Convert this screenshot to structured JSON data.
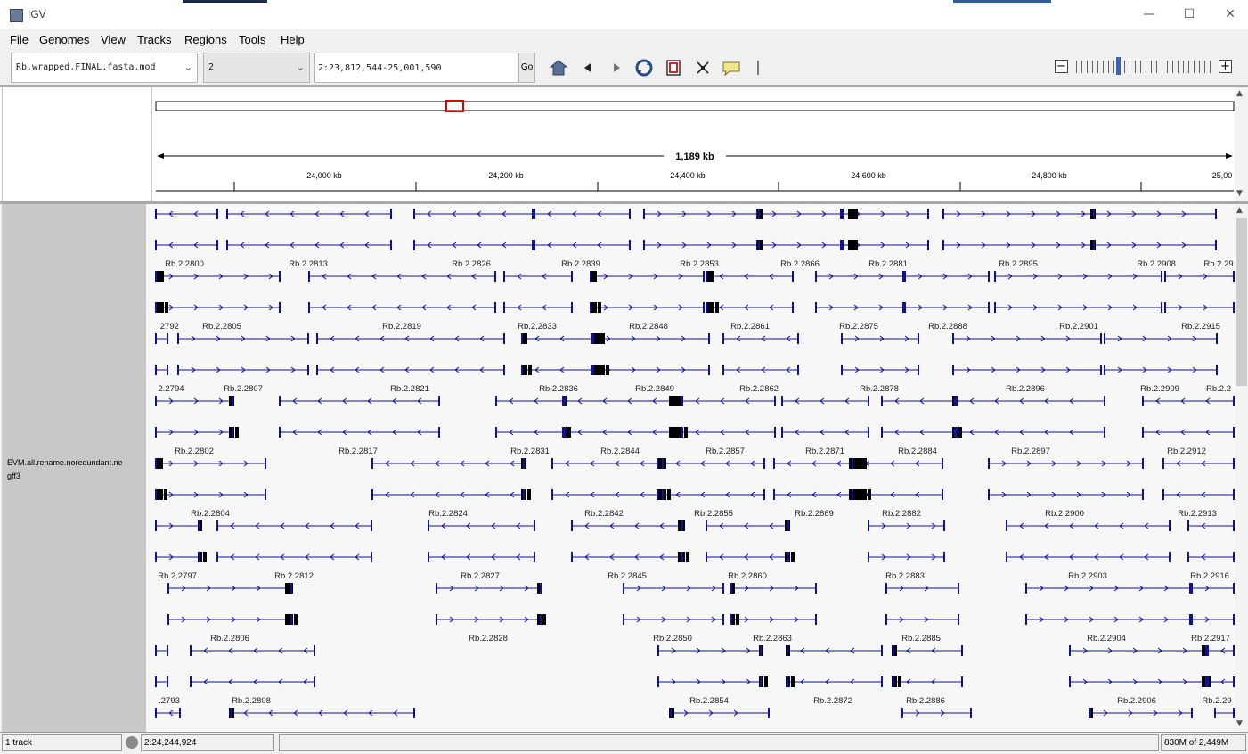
{
  "window": {
    "title": "IGV",
    "minimize": "—",
    "maximize": "☐",
    "close": "✕"
  },
  "menu": [
    "File",
    "Genomes",
    "View",
    "Tracks",
    "Regions",
    "Tools",
    "Help"
  ],
  "toolbar": {
    "genome_select": "Rb.wrapped.FINAL.fasta.mod",
    "chromosome_select": "2",
    "locus": "2:23,812,544-25,001,590",
    "go_label": "Go",
    "zoom_out": "−",
    "zoom_in": "+"
  },
  "ruler": {
    "span_label": "1,189 kb",
    "ticks": [
      {
        "label": "24,000 kb"
      },
      {
        "label": "24,200 kb"
      },
      {
        "label": "24,400 kb"
      },
      {
        "label": "24,600 kb"
      },
      {
        "label": "24,800 kb"
      },
      {
        "label": "25,00"
      }
    ]
  },
  "track": {
    "name": "EVM.all.rename.noredundant.ne gff3",
    "name_line1": "EVM.all.rename.noredundant.ne",
    "name_line2": "gff3"
  },
  "feature_color": "#10109a",
  "gene_labels": [
    [
      "Rb.2.2800",
      "Rb.2.2813",
      "Rb.2.2826",
      "Rb.2.2839",
      "Rb.2.2853",
      "Rb.2.2866",
      "Rb.2.2881",
      "Rb.2.2895",
      "Rb.2.2908",
      "Rb.2.29"
    ],
    [
      ".2792",
      "Rb.2.2805",
      "Rb.2.2819",
      "Rb.2.2833",
      "Rb.2.2848",
      "Rb.2.2861",
      "Rb.2.2875",
      "Rb.2.2888",
      "Rb.2.2901",
      "Rb.2.2915"
    ],
    [
      "2.2794",
      "Rb.2.2807",
      "Rb.2.2821",
      "Rb.2.2836",
      "Rb.2.2849",
      "Rb.2.2862",
      "Rb.2.2878",
      "Rb.2.2896",
      "Rb.2.2909",
      "Rb.2.2"
    ],
    [
      "Rb.2.2802",
      "Rb.2.2817",
      "Rb.2.2831",
      "Rb.2.2844",
      "Rb.2.2857",
      "Rb.2.2871",
      "Rb.2.2884",
      "Rb.2.2897",
      "Rb.2.2912"
    ],
    [
      "Rb.2.2804",
      "Rb.2.2824",
      "Rb.2.2842",
      "Rb.2.2855",
      "Rb.2.2869",
      "Rb.2.2882",
      "Rb.2.2900",
      "Rb.2.2913"
    ],
    [
      "Rb.2.2797",
      "Rb.2.2812",
      "Rb.2.2827",
      "Rb.2.2845",
      "Rb.2.2860",
      "Rb.2.2883",
      "Rb.2.2903",
      "Rb.2.2916"
    ],
    [
      "Rb.2.2806",
      "Rb.2.2828",
      "Rb.2.2850",
      "Rb.2.2863",
      "Rb.2.2885",
      "Rb.2.2904",
      "Rb.2.2917"
    ],
    [
      ".2793",
      "Rb.2.2808",
      "Rb.2.2854",
      "Rb.2.2872",
      "Rb.2.2886",
      "Rb.2.2906",
      "Rb.2.29"
    ]
  ],
  "status": {
    "tracks": "1 track",
    "position": "2:24,244,924",
    "message": "",
    "memory": "830M of 2,449M"
  }
}
